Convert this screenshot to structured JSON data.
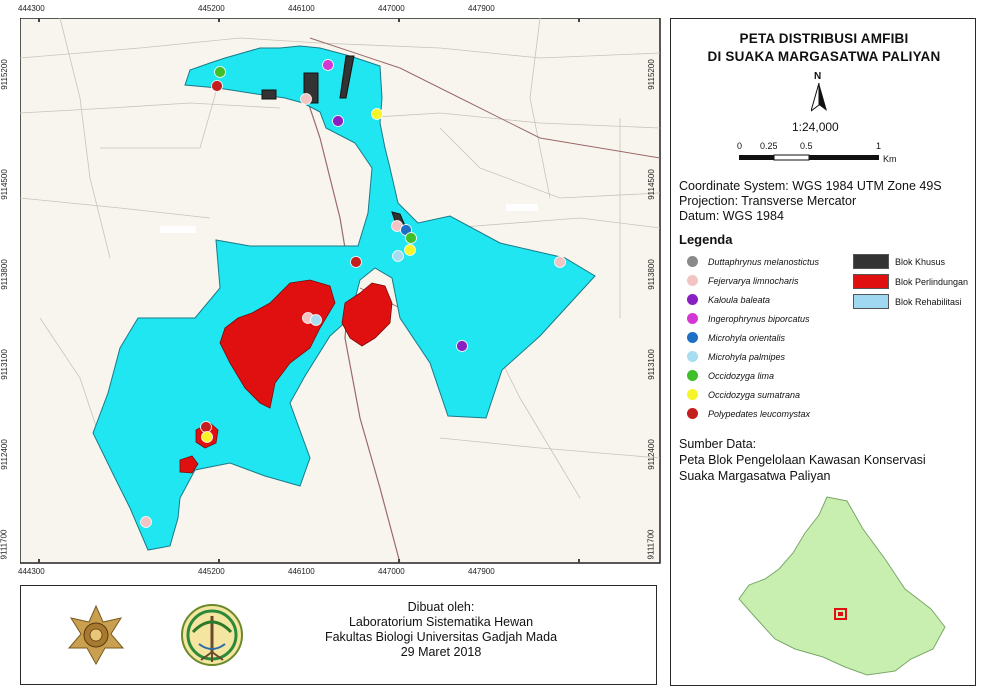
{
  "title": {
    "line1": "PETA DISTRIBUSI AMFIBI",
    "line2": "DI SUAKA MARGASATWA PALIYAN"
  },
  "north_arrow": {
    "label": "N"
  },
  "scale": {
    "ratio": "1:24,000",
    "ticks": [
      "0",
      "0.25",
      "0.5",
      "1"
    ],
    "unit": "Km"
  },
  "coordinate_info": [
    "Coordinate System: WGS 1984 UTM Zone 49S",
    "Projection: Transverse Mercator",
    "Datum: WGS 1984"
  ],
  "legend": {
    "heading": "Legenda",
    "species": [
      {
        "name": "Duttaphrynus melanostictus",
        "color": "#8a8a8a"
      },
      {
        "name": "Fejervarya limnocharis",
        "color": "#f2c4c4"
      },
      {
        "name": "Kaloula baleata",
        "color": "#8a1fc4"
      },
      {
        "name": "Ingerophrynus biporcatus",
        "color": "#d438d4"
      },
      {
        "name": "Microhyla orientalis",
        "color": "#1f6fc4"
      },
      {
        "name": "Microhyla palmipes",
        "color": "#a8dcf0"
      },
      {
        "name": "Occidozyga lima",
        "color": "#3fbf2a"
      },
      {
        "name": "Occidozyga sumatrana",
        "color": "#f5f52a"
      },
      {
        "name": "Polypedates leucomystax",
        "color": "#c41f1f"
      }
    ],
    "blocks": [
      {
        "name": "Blok Khusus",
        "color": "#333333"
      },
      {
        "name": "Blok Perlindungan",
        "color": "#e01010"
      },
      {
        "name": "Blok Rehabilitasi",
        "color": "#9fd8f0"
      }
    ]
  },
  "source": {
    "heading": "Sumber Data:",
    "lines": [
      "Peta Blok Pengelolaan Kawasan Konservasi",
      "Suaka Margasatwa Paliyan"
    ]
  },
  "credit": {
    "lines": [
      "Dibuat oleh:",
      "Laboratorium Sistematika Hewan",
      "Fakultas Biologi Universitas Gadjah Mada",
      "29 Maret 2018"
    ]
  },
  "grid": {
    "x_labels": [
      "444300",
      "445200",
      "446100",
      "447000",
      "447900"
    ],
    "y_labels": [
      "9115200",
      "9114500",
      "9113800",
      "9113100",
      "9112400",
      "9111700"
    ]
  },
  "colors": {
    "area": "#1fe6f0",
    "protection": "#e01010",
    "special": "#333333",
    "inset_land": "#c8efb0"
  }
}
